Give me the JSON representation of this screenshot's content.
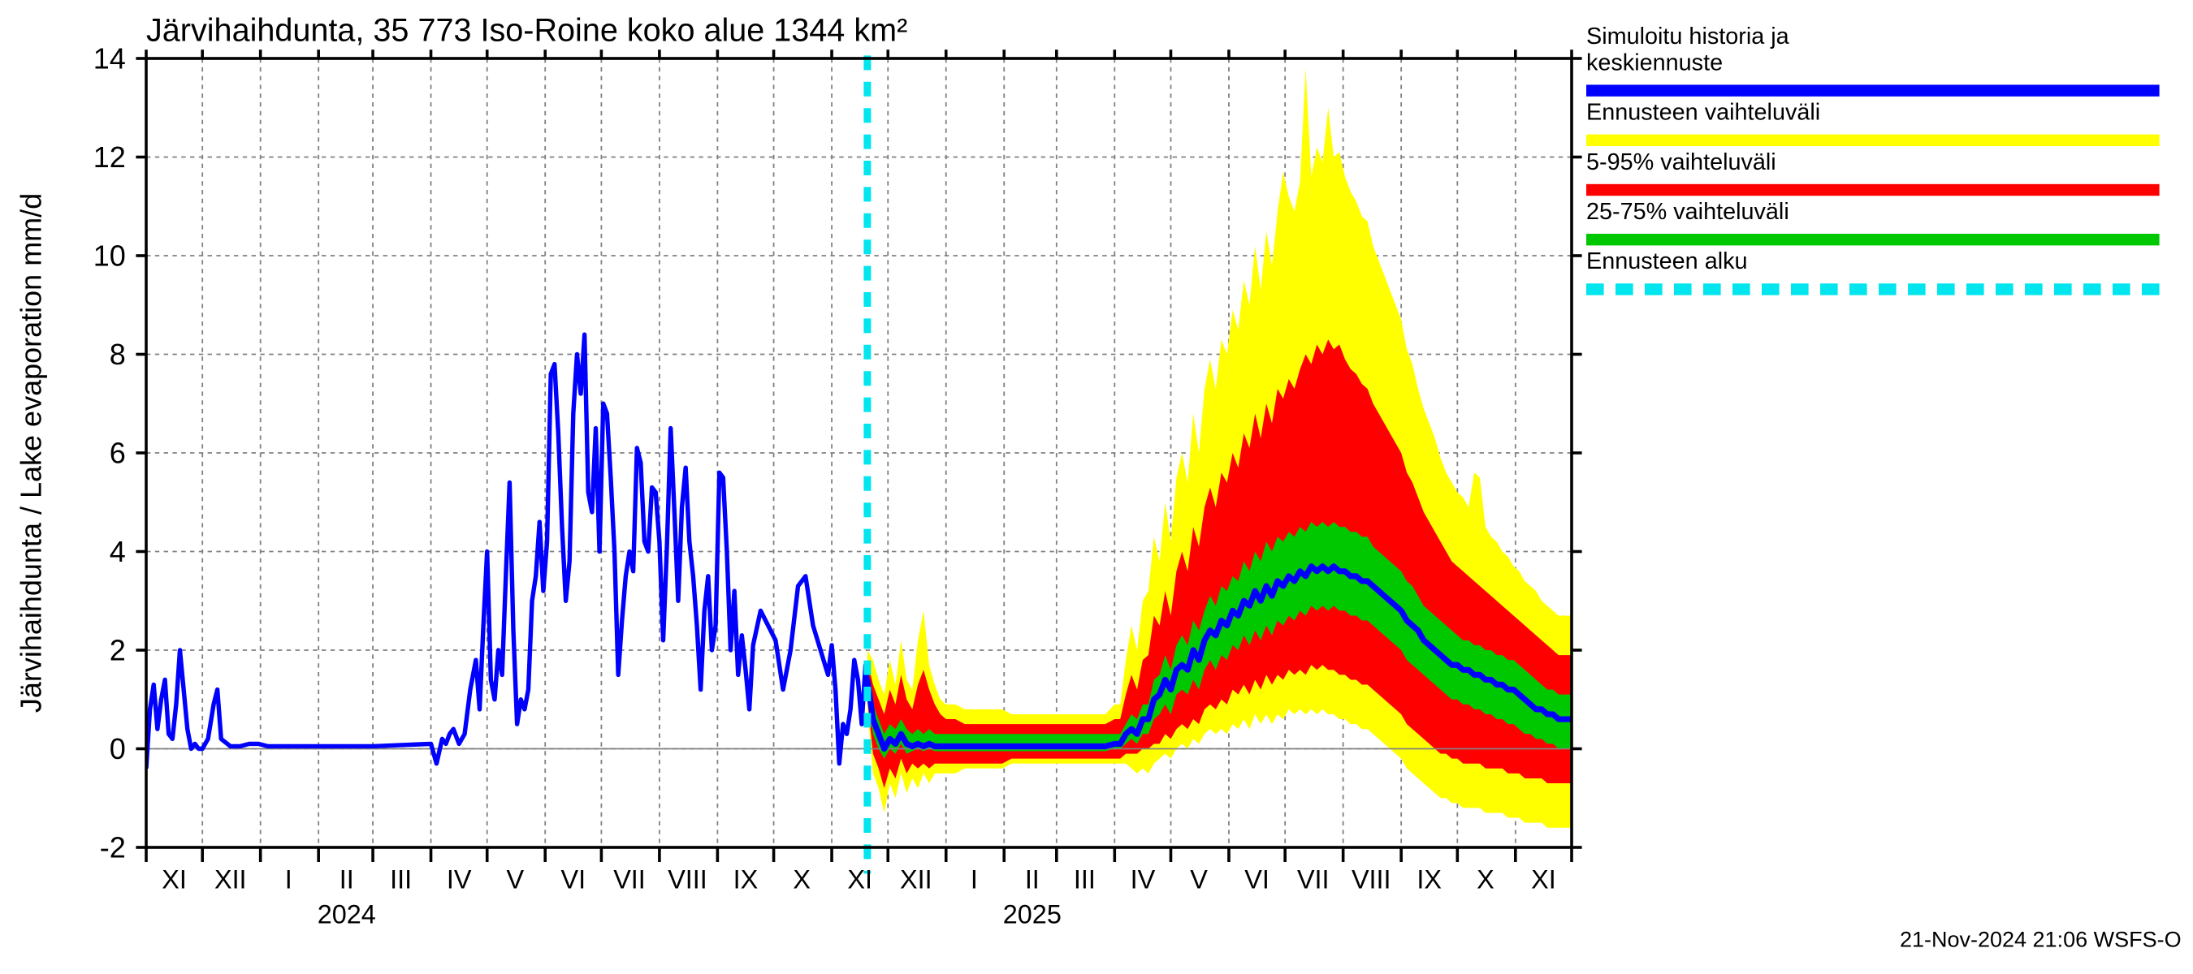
{
  "title": "Järvihaihdunta, 35 773 Iso-Roine koko alue 1344 km²",
  "title_fontsize": 22,
  "title_color": "#000000",
  "ylabel": "Järvihaihdunta / Lake evaporation   mm/d",
  "ylabel_fontsize": 20,
  "ylabel_color": "#000000",
  "timestamp": "21-Nov-2024 21:06 WSFS-O",
  "timestamp_fontsize": 15,
  "timestamp_color": "#000000",
  "plot": {
    "background_color": "#ffffff",
    "axis_color": "#000000",
    "axis_width": 2,
    "grid_color": "#808080",
    "grid_dash": "3,3",
    "grid_width": 1,
    "x_start": 0,
    "x_end": 761,
    "forecast_start_x": 385,
    "ylim": [
      -2,
      14
    ],
    "ytick_step": 2,
    "yticks": [
      -2,
      0,
      2,
      4,
      6,
      8,
      10,
      12,
      14
    ],
    "tick_fontsize": 20,
    "tick_color": "#000000",
    "month_ticks": [
      {
        "x": 15,
        "label": "XI"
      },
      {
        "x": 45,
        "label": "XII"
      },
      {
        "x": 76,
        "label": "I"
      },
      {
        "x": 107,
        "label": "II"
      },
      {
        "x": 136,
        "label": "III"
      },
      {
        "x": 167,
        "label": "IV"
      },
      {
        "x": 197,
        "label": "V"
      },
      {
        "x": 228,
        "label": "VI"
      },
      {
        "x": 258,
        "label": "VII"
      },
      {
        "x": 289,
        "label": "VIII"
      },
      {
        "x": 320,
        "label": "IX"
      },
      {
        "x": 350,
        "label": "X"
      },
      {
        "x": 381,
        "label": "XI"
      },
      {
        "x": 411,
        "label": "XII"
      },
      {
        "x": 442,
        "label": "I"
      },
      {
        "x": 473,
        "label": "II"
      },
      {
        "x": 501,
        "label": "III"
      },
      {
        "x": 532,
        "label": "IV"
      },
      {
        "x": 562,
        "label": "V"
      },
      {
        "x": 593,
        "label": "VI"
      },
      {
        "x": 623,
        "label": "VII"
      },
      {
        "x": 654,
        "label": "VIII"
      },
      {
        "x": 685,
        "label": "IX"
      },
      {
        "x": 715,
        "label": "X"
      },
      {
        "x": 746,
        "label": "XI"
      }
    ],
    "month_boundaries": [
      0,
      30,
      61,
      92,
      121,
      152,
      182,
      213,
      243,
      274,
      305,
      335,
      366,
      396,
      427,
      458,
      486,
      517,
      547,
      578,
      608,
      639,
      670,
      700,
      731,
      761
    ],
    "year_labels": [
      {
        "x": 107,
        "text": "2024"
      },
      {
        "x": 473,
        "text": "2025"
      }
    ]
  },
  "legend": {
    "label_fontsize": 16,
    "label_color": "#000000",
    "swatch_height": 8,
    "items": [
      {
        "id": "sim",
        "lines": [
          "Simuloitu historia ja",
          "keskiennuste"
        ],
        "color": "#0000ff",
        "style": "solid"
      },
      {
        "id": "full",
        "lines": [
          "Ennusteen vaihteluväli"
        ],
        "color": "#ffff00",
        "style": "solid"
      },
      {
        "id": "p90",
        "lines": [
          "5-95% vaihteluväli"
        ],
        "color": "#ff0000",
        "style": "solid"
      },
      {
        "id": "p50",
        "lines": [
          "25-75% vaihteluväli"
        ],
        "color": "#00c800",
        "style": "solid"
      },
      {
        "id": "start",
        "lines": [
          "Ennusteen alku"
        ],
        "color": "#00e5ee",
        "style": "dashed"
      }
    ]
  },
  "colors": {
    "history_line": "#0000ff",
    "band_full": "#ffff00",
    "band_p90": "#ff0000",
    "band_p50": "#00c800",
    "median": "#0000ff",
    "forecast_marker": "#00e5ee",
    "forecast_marker_width": 5,
    "forecast_marker_dash": "10,8"
  },
  "history_line_width": 3,
  "median_line_width": 4,
  "history": {
    "x": [
      0,
      2,
      4,
      6,
      8,
      10,
      12,
      14,
      16,
      18,
      20,
      22,
      24,
      26,
      28,
      30,
      33,
      36,
      38,
      40,
      45,
      50,
      55,
      60,
      65,
      121,
      152,
      155,
      158,
      160,
      162,
      164,
      167,
      170,
      173,
      176,
      178,
      180,
      182,
      184,
      186,
      188,
      190,
      192,
      194,
      196,
      198,
      200,
      202,
      204,
      206,
      208,
      210,
      212,
      214,
      216,
      218,
      220,
      222,
      224,
      226,
      228,
      230,
      232,
      234,
      236,
      238,
      240,
      242,
      244,
      246,
      248,
      250,
      252,
      254,
      256,
      258,
      260,
      262,
      264,
      266,
      268,
      270,
      272,
      274,
      276,
      278,
      280,
      282,
      284,
      286,
      288,
      290,
      292,
      294,
      296,
      298,
      300,
      302,
      304,
      306,
      308,
      310,
      312,
      314,
      316,
      318,
      320,
      322,
      324,
      328,
      332,
      336,
      340,
      344,
      348,
      352,
      356,
      360,
      364,
      366,
      368,
      370,
      372,
      374,
      376,
      378,
      380,
      382,
      384,
      385
    ],
    "y": [
      -0.4,
      0.8,
      1.3,
      0.4,
      1.0,
      1.4,
      0.3,
      0.2,
      0.9,
      2.0,
      1.2,
      0.4,
      0.0,
      0.1,
      0.0,
      0.0,
      0.2,
      0.9,
      1.2,
      0.2,
      0.05,
      0.05,
      0.1,
      0.1,
      0.05,
      0.05,
      0.1,
      -0.3,
      0.2,
      0.1,
      0.3,
      0.4,
      0.1,
      0.3,
      1.2,
      1.8,
      0.8,
      2.5,
      4.0,
      1.4,
      1.0,
      2.0,
      1.5,
      3.5,
      5.4,
      2.4,
      0.5,
      1.0,
      0.8,
      1.2,
      3.0,
      3.5,
      4.6,
      3.2,
      4.2,
      7.6,
      7.8,
      6.4,
      4.5,
      3.0,
      3.8,
      6.8,
      8.0,
      7.2,
      8.4,
      5.2,
      4.8,
      6.5,
      4.0,
      7.0,
      6.8,
      5.5,
      4.0,
      1.5,
      2.6,
      3.5,
      4.0,
      3.6,
      6.1,
      5.8,
      4.2,
      4.0,
      5.3,
      5.2,
      4.2,
      2.2,
      4.1,
      6.5,
      4.8,
      3.0,
      4.9,
      5.7,
      4.2,
      3.5,
      2.5,
      1.2,
      2.8,
      3.5,
      2.0,
      2.5,
      5.6,
      5.5,
      4.0,
      2.0,
      3.2,
      1.5,
      2.3,
      1.6,
      0.8,
      2.1,
      2.8,
      2.5,
      2.2,
      1.2,
      2.0,
      3.3,
      3.5,
      2.5,
      2.0,
      1.5,
      2.1,
      1.2,
      -0.3,
      0.5,
      0.3,
      0.8,
      1.8,
      1.4,
      0.5,
      1.7,
      1.4
    ]
  },
  "forecast": {
    "x": [
      385,
      388,
      391,
      394,
      397,
      400,
      403,
      406,
      409,
      412,
      415,
      418,
      421,
      424,
      427,
      432,
      437,
      442,
      447,
      452,
      457,
      462,
      467,
      472,
      477,
      482,
      487,
      492,
      497,
      502,
      507,
      512,
      517,
      520,
      523,
      526,
      529,
      532,
      535,
      538,
      541,
      544,
      547,
      550,
      553,
      556,
      559,
      562,
      565,
      568,
      571,
      574,
      577,
      580,
      583,
      586,
      589,
      592,
      595,
      598,
      601,
      604,
      607,
      610,
      613,
      616,
      619,
      622,
      625,
      628,
      631,
      634,
      637,
      640,
      643,
      646,
      649,
      652,
      655,
      658,
      661,
      664,
      667,
      670,
      673,
      676,
      679,
      682,
      685,
      688,
      691,
      694,
      697,
      700,
      703,
      706,
      709,
      712,
      715,
      718,
      721,
      724,
      727,
      730,
      733,
      736,
      739,
      742,
      745,
      748,
      751,
      754,
      757,
      760,
      761
    ],
    "median": [
      1.4,
      0.6,
      0.3,
      0.0,
      0.2,
      0.1,
      0.3,
      0.1,
      0.05,
      0.1,
      0.05,
      0.1,
      0.05,
      0.05,
      0.05,
      0.05,
      0.05,
      0.05,
      0.05,
      0.05,
      0.05,
      0.05,
      0.05,
      0.05,
      0.05,
      0.05,
      0.05,
      0.05,
      0.05,
      0.05,
      0.05,
      0.05,
      0.1,
      0.1,
      0.3,
      0.4,
      0.3,
      0.6,
      0.6,
      1.0,
      1.1,
      1.4,
      1.2,
      1.6,
      1.7,
      1.6,
      2.0,
      1.8,
      2.2,
      2.4,
      2.3,
      2.6,
      2.5,
      2.8,
      2.7,
      3.0,
      2.9,
      3.2,
      3.0,
      3.3,
      3.1,
      3.4,
      3.3,
      3.5,
      3.4,
      3.6,
      3.5,
      3.7,
      3.6,
      3.7,
      3.6,
      3.7,
      3.6,
      3.6,
      3.5,
      3.5,
      3.4,
      3.4,
      3.3,
      3.2,
      3.1,
      3.0,
      2.9,
      2.8,
      2.6,
      2.5,
      2.4,
      2.2,
      2.1,
      2.0,
      1.9,
      1.8,
      1.7,
      1.7,
      1.6,
      1.6,
      1.5,
      1.5,
      1.4,
      1.4,
      1.3,
      1.3,
      1.2,
      1.2,
      1.1,
      1.0,
      0.9,
      0.8,
      0.8,
      0.7,
      0.7,
      0.6,
      0.6,
      0.6,
      0.6
    ],
    "p25": [
      1.2,
      0.3,
      0.0,
      -0.2,
      0.0,
      -0.1,
      0.1,
      -0.1,
      -0.05,
      0.0,
      -0.05,
      0.0,
      -0.05,
      -0.05,
      -0.05,
      -0.05,
      -0.05,
      -0.05,
      -0.05,
      -0.05,
      -0.05,
      -0.05,
      -0.05,
      -0.05,
      -0.05,
      -0.05,
      -0.05,
      -0.05,
      -0.05,
      -0.05,
      -0.05,
      -0.05,
      0.0,
      0.0,
      0.1,
      0.2,
      0.1,
      0.3,
      0.3,
      0.6,
      0.7,
      0.9,
      0.7,
      1.1,
      1.2,
      1.1,
      1.4,
      1.2,
      1.6,
      1.8,
      1.6,
      1.9,
      1.8,
      2.1,
      2.0,
      2.3,
      2.1,
      2.4,
      2.2,
      2.5,
      2.3,
      2.6,
      2.5,
      2.7,
      2.6,
      2.8,
      2.7,
      2.9,
      2.8,
      2.9,
      2.8,
      2.9,
      2.8,
      2.8,
      2.7,
      2.7,
      2.6,
      2.6,
      2.5,
      2.4,
      2.3,
      2.2,
      2.1,
      2.0,
      1.8,
      1.7,
      1.6,
      1.5,
      1.4,
      1.3,
      1.2,
      1.1,
      1.0,
      1.0,
      0.9,
      0.9,
      0.8,
      0.8,
      0.7,
      0.7,
      0.6,
      0.6,
      0.5,
      0.5,
      0.4,
      0.3,
      0.3,
      0.2,
      0.2,
      0.1,
      0.1,
      0.0,
      0.0,
      0.0,
      0.0
    ],
    "p75": [
      1.6,
      0.9,
      0.6,
      0.3,
      0.5,
      0.4,
      0.6,
      0.4,
      0.3,
      0.4,
      0.3,
      0.4,
      0.3,
      0.3,
      0.3,
      0.3,
      0.3,
      0.3,
      0.3,
      0.3,
      0.3,
      0.3,
      0.3,
      0.3,
      0.3,
      0.3,
      0.3,
      0.3,
      0.3,
      0.3,
      0.3,
      0.3,
      0.3,
      0.3,
      0.5,
      0.7,
      0.6,
      0.9,
      0.9,
      1.4,
      1.5,
      1.9,
      1.6,
      2.1,
      2.3,
      2.1,
      2.6,
      2.4,
      2.8,
      3.1,
      2.9,
      3.3,
      3.2,
      3.5,
      3.4,
      3.8,
      3.6,
      4.0,
      3.8,
      4.2,
      4.0,
      4.3,
      4.2,
      4.4,
      4.3,
      4.5,
      4.4,
      4.6,
      4.5,
      4.6,
      4.5,
      4.6,
      4.5,
      4.5,
      4.4,
      4.4,
      4.3,
      4.3,
      4.1,
      4.0,
      3.9,
      3.8,
      3.7,
      3.6,
      3.4,
      3.3,
      3.1,
      2.9,
      2.8,
      2.7,
      2.6,
      2.5,
      2.4,
      2.3,
      2.2,
      2.2,
      2.1,
      2.1,
      2.0,
      2.0,
      1.9,
      1.9,
      1.8,
      1.8,
      1.7,
      1.6,
      1.5,
      1.4,
      1.3,
      1.2,
      1.2,
      1.1,
      1.1,
      1.1,
      1.1
    ],
    "p05": [
      1.0,
      -0.1,
      -0.4,
      -0.8,
      -0.4,
      -0.6,
      -0.2,
      -0.5,
      -0.3,
      -0.4,
      -0.3,
      -0.4,
      -0.3,
      -0.3,
      -0.3,
      -0.3,
      -0.3,
      -0.3,
      -0.3,
      -0.3,
      -0.3,
      -0.2,
      -0.2,
      -0.2,
      -0.2,
      -0.2,
      -0.2,
      -0.2,
      -0.2,
      -0.2,
      -0.2,
      -0.2,
      -0.2,
      -0.2,
      -0.1,
      -0.1,
      -0.1,
      0.0,
      0.0,
      0.1,
      0.1,
      0.3,
      0.2,
      0.4,
      0.5,
      0.4,
      0.6,
      0.5,
      0.8,
      0.9,
      0.8,
      1.0,
      0.9,
      1.2,
      1.1,
      1.3,
      1.1,
      1.4,
      1.2,
      1.5,
      1.3,
      1.5,
      1.4,
      1.6,
      1.5,
      1.6,
      1.5,
      1.7,
      1.6,
      1.7,
      1.6,
      1.6,
      1.5,
      1.5,
      1.4,
      1.4,
      1.3,
      1.3,
      1.2,
      1.1,
      1.0,
      0.9,
      0.8,
      0.7,
      0.5,
      0.4,
      0.3,
      0.2,
      0.1,
      0.0,
      -0.1,
      -0.1,
      -0.2,
      -0.2,
      -0.3,
      -0.3,
      -0.3,
      -0.3,
      -0.4,
      -0.4,
      -0.4,
      -0.4,
      -0.5,
      -0.5,
      -0.5,
      -0.6,
      -0.6,
      -0.6,
      -0.6,
      -0.7,
      -0.7,
      -0.7,
      -0.7,
      -0.7,
      -0.7
    ],
    "p95": [
      1.8,
      1.3,
      1.0,
      0.7,
      1.2,
      0.9,
      1.5,
      1.0,
      0.8,
      1.3,
      1.6,
      1.2,
      0.9,
      0.7,
      0.6,
      0.6,
      0.5,
      0.5,
      0.5,
      0.5,
      0.5,
      0.5,
      0.5,
      0.5,
      0.5,
      0.5,
      0.5,
      0.5,
      0.5,
      0.5,
      0.5,
      0.5,
      0.6,
      0.6,
      1.1,
      1.5,
      1.2,
      1.8,
      1.9,
      2.7,
      2.5,
      3.2,
      2.7,
      3.6,
      4.0,
      3.6,
      4.5,
      4.1,
      4.9,
      5.3,
      4.9,
      5.6,
      5.4,
      6.0,
      5.7,
      6.4,
      6.1,
      6.8,
      6.3,
      7.0,
      6.6,
      7.3,
      7.1,
      7.5,
      7.3,
      7.7,
      8.0,
      7.8,
      8.2,
      8.0,
      8.3,
      8.1,
      8.2,
      7.9,
      7.7,
      7.6,
      7.4,
      7.3,
      7.0,
      6.8,
      6.6,
      6.4,
      6.2,
      6.0,
      5.6,
      5.4,
      5.1,
      4.8,
      4.6,
      4.4,
      4.2,
      4.0,
      3.8,
      3.7,
      3.6,
      3.5,
      3.4,
      3.3,
      3.2,
      3.1,
      3.0,
      2.9,
      2.8,
      2.7,
      2.6,
      2.5,
      2.4,
      2.3,
      2.2,
      2.1,
      2.0,
      1.9,
      1.9,
      1.9,
      1.9
    ],
    "min": [
      0.8,
      -0.5,
      -0.8,
      -1.3,
      -0.7,
      -1.0,
      -0.5,
      -0.9,
      -0.6,
      -0.8,
      -0.5,
      -0.7,
      -0.5,
      -0.5,
      -0.5,
      -0.5,
      -0.4,
      -0.4,
      -0.4,
      -0.4,
      -0.4,
      -0.3,
      -0.3,
      -0.3,
      -0.3,
      -0.3,
      -0.3,
      -0.3,
      -0.3,
      -0.3,
      -0.3,
      -0.3,
      -0.3,
      -0.3,
      -0.3,
      -0.4,
      -0.5,
      -0.4,
      -0.5,
      -0.3,
      -0.2,
      -0.1,
      -0.2,
      0.0,
      0.1,
      0.0,
      0.2,
      0.1,
      0.3,
      0.4,
      0.3,
      0.4,
      0.3,
      0.5,
      0.4,
      0.6,
      0.4,
      0.7,
      0.5,
      0.7,
      0.5,
      0.7,
      0.6,
      0.8,
      0.7,
      0.8,
      0.7,
      0.8,
      0.7,
      0.8,
      0.7,
      0.7,
      0.6,
      0.6,
      0.5,
      0.5,
      0.4,
      0.4,
      0.3,
      0.2,
      0.1,
      0.0,
      -0.1,
      -0.2,
      -0.4,
      -0.5,
      -0.6,
      -0.7,
      -0.8,
      -0.9,
      -1.0,
      -1.0,
      -1.1,
      -1.1,
      -1.2,
      -1.2,
      -1.2,
      -1.2,
      -1.3,
      -1.3,
      -1.3,
      -1.3,
      -1.4,
      -1.4,
      -1.4,
      -1.5,
      -1.5,
      -1.5,
      -1.5,
      -1.6,
      -1.6,
      -1.6,
      -1.6,
      -1.6,
      -1.6
    ],
    "max": [
      2.0,
      1.8,
      1.4,
      1.1,
      1.8,
      1.3,
      2.2,
      1.4,
      1.2,
      2.2,
      2.8,
      1.7,
      1.3,
      1.0,
      0.9,
      0.9,
      0.8,
      0.8,
      0.8,
      0.8,
      0.8,
      0.7,
      0.7,
      0.7,
      0.7,
      0.7,
      0.7,
      0.7,
      0.7,
      0.7,
      0.7,
      0.7,
      0.9,
      0.9,
      1.8,
      2.5,
      2.0,
      3.0,
      3.2,
      4.3,
      3.8,
      5.0,
      4.2,
      5.5,
      6.0,
      5.4,
      6.8,
      6.0,
      7.3,
      7.9,
      7.3,
      8.3,
      8.0,
      8.9,
      8.5,
      9.5,
      9.0,
      10.2,
      9.3,
      10.5,
      9.8,
      10.9,
      11.7,
      11.2,
      10.9,
      11.5,
      13.8,
      11.6,
      12.2,
      11.9,
      13.0,
      12.0,
      12.1,
      11.6,
      11.3,
      11.1,
      10.8,
      10.7,
      10.2,
      9.9,
      9.6,
      9.3,
      9.0,
      8.7,
      8.1,
      7.8,
      7.3,
      6.9,
      6.6,
      6.3,
      5.9,
      5.6,
      5.4,
      5.2,
      5.1,
      4.9,
      5.6,
      5.5,
      4.5,
      4.3,
      4.2,
      4.0,
      3.9,
      3.7,
      3.6,
      3.4,
      3.3,
      3.2,
      3.0,
      2.9,
      2.8,
      2.7,
      2.7,
      2.7,
      2.7
    ]
  }
}
